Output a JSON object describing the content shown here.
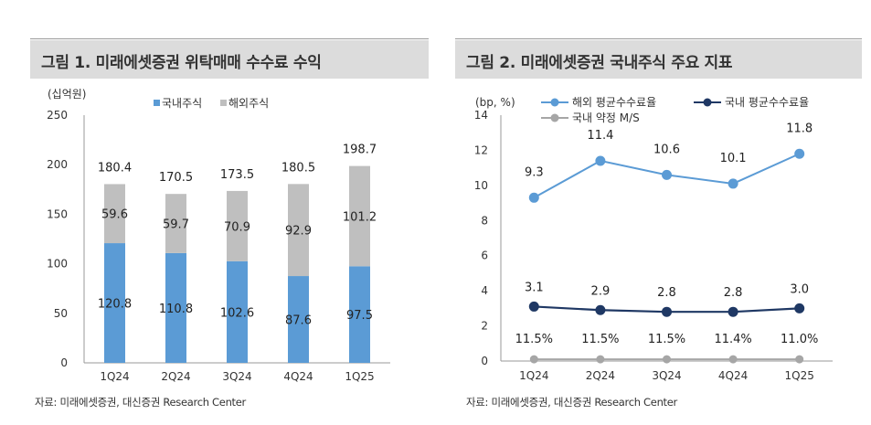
{
  "colors": {
    "domestic_bar": "#5b9bd5",
    "overseas_bar": "#bfbfbf",
    "line_light": "#5b9bd5",
    "line_dark": "#1f3864",
    "line_gray": "#a6a6a6",
    "header_bg": "#dcdcdc"
  },
  "figure1": {
    "title": "그림 1. 미래에셋증권 위탁매매 수수료 수익",
    "source": "자료: 미래에셋증권, 대신증권 Research Center",
    "chart_data": {
      "type": "bar",
      "stacked": true,
      "unit": "(십억원)",
      "categories": [
        "1Q24",
        "2Q24",
        "3Q24",
        "4Q24",
        "1Q25"
      ],
      "series": [
        {
          "name": "국내주식",
          "values": [
            120.8,
            110.8,
            102.6,
            87.6,
            97.5
          ],
          "labels": [
            "120.8",
            "110.8",
            "102.6",
            "87.6",
            "97.5"
          ]
        },
        {
          "name": "해외주식",
          "values": [
            59.6,
            59.7,
            70.9,
            92.9,
            101.2
          ],
          "labels": [
            "59.6",
            "59.7",
            "70.9",
            "92.9",
            "101.2"
          ]
        }
      ],
      "totals": [
        180.4,
        170.5,
        173.5,
        180.5,
        198.7
      ],
      "total_labels": [
        "180.4",
        "170.5",
        "173.5",
        "180.5",
        "198.7"
      ],
      "ylim": [
        0,
        250
      ],
      "yticks": [
        0,
        50,
        100,
        150,
        200,
        250
      ],
      "ytick_labels": [
        "0",
        "50",
        "100",
        "150",
        "200",
        "250"
      ],
      "legend": "top"
    }
  },
  "figure2": {
    "title": "그림 2. 미래에셋증권 국내주식 주요 지표",
    "source": "자료: 미래에셋증권, 대신증권 Research Center",
    "chart_data": {
      "type": "line",
      "unit": "(bp, %)",
      "categories": [
        "1Q24",
        "2Q24",
        "3Q24",
        "4Q24",
        "1Q25"
      ],
      "series": [
        {
          "name": "해외 평균수수료율",
          "values": [
            9.3,
            11.4,
            10.6,
            10.1,
            11.8
          ],
          "labels": [
            "9.3",
            "11.4",
            "10.6",
            "10.1",
            "11.8"
          ]
        },
        {
          "name": "국내 평균수수료율",
          "values": [
            3.1,
            2.9,
            2.8,
            2.8,
            3.0
          ],
          "labels": [
            "3.1",
            "2.9",
            "2.8",
            "2.8",
            "3.0"
          ]
        },
        {
          "name": "국내 약정 M/S",
          "values": [
            11.5,
            11.5,
            11.5,
            11.4,
            11.0
          ],
          "labels": [
            "11.5%",
            "11.5%",
            "11.5%",
            "11.4%",
            "11.0%"
          ],
          "plotted_on_axis_at": 0.1
        }
      ],
      "ylim": [
        0,
        14
      ],
      "yticks": [
        0,
        2,
        4,
        6,
        8,
        10,
        12,
        14
      ],
      "ytick_labels": [
        "0",
        "2",
        "4",
        "6",
        "8",
        "10",
        "12",
        "14"
      ],
      "legend": "top"
    }
  }
}
